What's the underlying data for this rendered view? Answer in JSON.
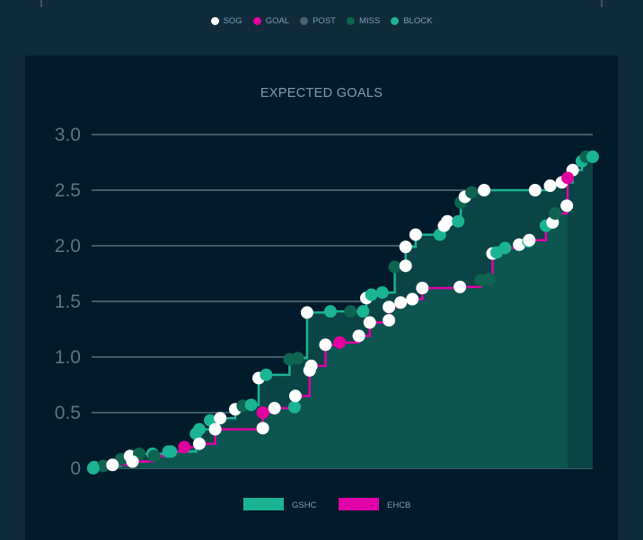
{
  "legend_types": [
    {
      "key": "sog",
      "label": "SOG",
      "color": "#ffffff"
    },
    {
      "key": "goal",
      "label": "GOAL",
      "color": "#e0009f"
    },
    {
      "key": "post",
      "label": "POST",
      "color": "#4b6475"
    },
    {
      "key": "miss",
      "label": "MISS",
      "color": "#0e6450"
    },
    {
      "key": "block",
      "label": "BLOCK",
      "color": "#1ab394"
    }
  ],
  "chart_data": {
    "type": "line",
    "title": "EXPECTED GOALS",
    "xlabel": "",
    "ylabel": "",
    "xlim": [
      0,
      60
    ],
    "ylim": [
      0,
      3.0
    ],
    "yticks": [
      "0",
      "0.5",
      "1.0",
      "1.5",
      "2.0",
      "2.5",
      "3.0"
    ],
    "ytick_values": [
      0,
      0.5,
      1.0,
      1.5,
      2.0,
      2.5,
      3.0
    ],
    "grid": true,
    "legend_placement": "bottom",
    "series": [
      {
        "name": "GSHC",
        "color": "#1ab394",
        "end_minute": 60,
        "points": [
          [
            0.3,
            0.01,
            "block"
          ],
          [
            1.4,
            0.02,
            "miss"
          ],
          [
            3.5,
            0.08,
            "miss"
          ],
          [
            4.6,
            0.11,
            "sog"
          ],
          [
            5.7,
            0.13,
            "miss"
          ],
          [
            7.3,
            0.13,
            "block"
          ],
          [
            9.2,
            0.15,
            "block"
          ],
          [
            12.5,
            0.31,
            "block"
          ],
          [
            12.9,
            0.35,
            "block"
          ],
          [
            14.2,
            0.43,
            "block"
          ],
          [
            15.4,
            0.45,
            "sog"
          ],
          [
            17.2,
            0.53,
            "sog"
          ],
          [
            18.1,
            0.56,
            "miss"
          ],
          [
            19.1,
            0.57,
            "block"
          ],
          [
            20.0,
            0.81,
            "sog"
          ],
          [
            20.9,
            0.84,
            "block"
          ],
          [
            23.7,
            0.98,
            "miss"
          ],
          [
            24.7,
            0.99,
            "miss"
          ],
          [
            25.8,
            1.4,
            "sog"
          ],
          [
            28.6,
            1.41,
            "block"
          ],
          [
            31.0,
            1.41,
            "miss"
          ],
          [
            32.5,
            1.41,
            "block"
          ],
          [
            32.9,
            1.53,
            "sog"
          ],
          [
            33.5,
            1.56,
            "block"
          ],
          [
            34.8,
            1.58,
            "block"
          ],
          [
            36.3,
            1.81,
            "miss"
          ],
          [
            37.6,
            1.82,
            "sog"
          ],
          [
            37.6,
            1.99,
            "sog"
          ],
          [
            38.8,
            2.1,
            "sog"
          ],
          [
            41.7,
            2.1,
            "block"
          ],
          [
            42.2,
            2.18,
            "sog"
          ],
          [
            42.6,
            2.22,
            "sog"
          ],
          [
            43.9,
            2.22,
            "block"
          ],
          [
            44.2,
            2.39,
            "miss"
          ],
          [
            44.7,
            2.44,
            "sog"
          ],
          [
            45.5,
            2.48,
            "miss"
          ],
          [
            47.0,
            2.5,
            "sog"
          ],
          [
            53.1,
            2.5,
            "sog"
          ],
          [
            54.9,
            2.54,
            "sog"
          ],
          [
            56.3,
            2.57,
            "sog"
          ],
          [
            57.6,
            2.68,
            "sog"
          ],
          [
            58.7,
            2.76,
            "block"
          ],
          [
            59.2,
            2.8,
            "miss"
          ],
          [
            60.0,
            2.8,
            "block"
          ]
        ]
      },
      {
        "name": "EHCB",
        "color": "#e000a8",
        "end_minute": 57,
        "points": [
          [
            0.2,
            0.0,
            "block"
          ],
          [
            2.5,
            0.03,
            "sog"
          ],
          [
            4.9,
            0.06,
            "sog"
          ],
          [
            7.5,
            0.11,
            "miss"
          ],
          [
            9.5,
            0.15,
            "block"
          ],
          [
            11.1,
            0.19,
            "goal"
          ],
          [
            12.9,
            0.22,
            "sog"
          ],
          [
            14.8,
            0.35,
            "sog"
          ],
          [
            20.5,
            0.36,
            "sog"
          ],
          [
            20.5,
            0.5,
            "goal"
          ],
          [
            21.9,
            0.54,
            "sog"
          ],
          [
            24.3,
            0.55,
            "block"
          ],
          [
            24.4,
            0.65,
            "sog"
          ],
          [
            26.1,
            0.88,
            "sog"
          ],
          [
            26.3,
            0.92,
            "sog"
          ],
          [
            28.0,
            1.11,
            "sog"
          ],
          [
            29.7,
            1.13,
            "goal"
          ],
          [
            32.0,
            1.19,
            "sog"
          ],
          [
            33.3,
            1.31,
            "sog"
          ],
          [
            35.6,
            1.33,
            "sog"
          ],
          [
            35.6,
            1.45,
            "sog"
          ],
          [
            37.0,
            1.49,
            "sog"
          ],
          [
            38.4,
            1.52,
            "sog"
          ],
          [
            39.6,
            1.62,
            "sog"
          ],
          [
            44.1,
            1.63,
            "sog"
          ],
          [
            46.6,
            1.69,
            "miss"
          ],
          [
            47.6,
            1.7,
            "miss"
          ],
          [
            48.0,
            1.93,
            "sog"
          ],
          [
            48.5,
            1.94,
            "block"
          ],
          [
            49.5,
            1.98,
            "block"
          ],
          [
            51.2,
            2.01,
            "sog"
          ],
          [
            52.3,
            2.04,
            "block"
          ],
          [
            52.4,
            2.05,
            "sog"
          ],
          [
            54.4,
            2.18,
            "block"
          ],
          [
            55.2,
            2.21,
            "sog"
          ],
          [
            55.5,
            2.29,
            "miss"
          ],
          [
            56.9,
            2.36,
            "sog"
          ],
          [
            57.0,
            2.61,
            "goal"
          ]
        ]
      }
    ]
  }
}
